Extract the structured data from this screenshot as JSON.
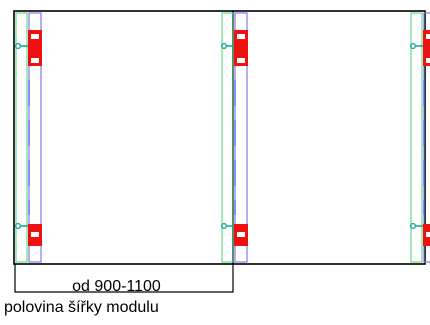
{
  "dimension": {
    "range_label": "od 900-1100",
    "caption": "polovina šířky modulu"
  },
  "colors": {
    "frame": "#000000",
    "guide_green": "#66dd88",
    "guide_purple": "#8877ee",
    "clamp_red": "#ee1111",
    "clamp_hole": "#ffffff",
    "rail_dash": "#6666ff",
    "connector_teal": "#22aa99"
  },
  "posts": [
    "left-post",
    "middle-post",
    "right-post"
  ],
  "clamp_positions": [
    "top",
    "bottom"
  ]
}
